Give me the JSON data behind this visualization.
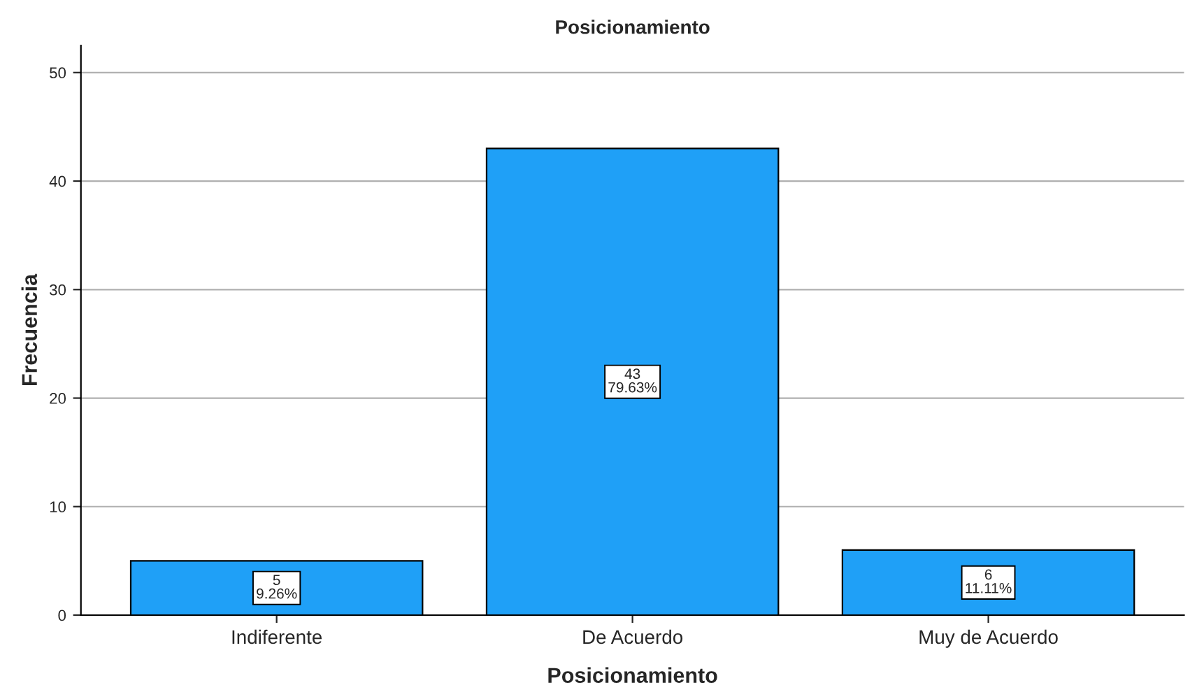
{
  "chart_data": {
    "type": "bar",
    "title": "Posicionamiento",
    "xlabel": "Posicionamiento",
    "ylabel": "Frecuencia",
    "categories": [
      "Indiferente",
      "De Acuerdo",
      "Muy de Acuerdo"
    ],
    "values": [
      5,
      43,
      6
    ],
    "value_labels": [
      "5\n9.26%",
      "43\n79.63%",
      "6\n11.11%"
    ],
    "color": "#1fa0f7",
    "ylim": [
      0,
      52.5
    ],
    "yticks": [
      0,
      10,
      20,
      30,
      40,
      50
    ],
    "grid": "y",
    "legend": false
  }
}
